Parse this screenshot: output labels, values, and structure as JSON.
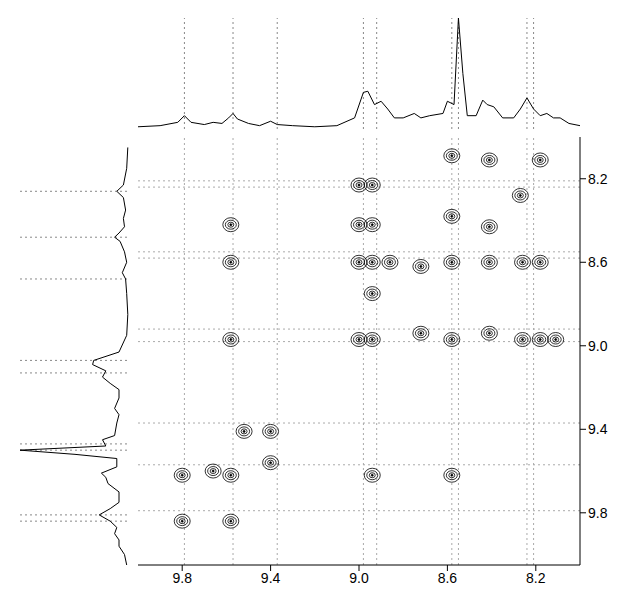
{
  "chart_data": {
    "type": "scatter",
    "marker": "contour",
    "color": "#000000",
    "xlim": [
      10.0,
      8.0
    ],
    "ylim": [
      8.0,
      10.05
    ],
    "xticks": [
      9.8,
      9.4,
      {
        "value": 9,
        "label": "9.0"
      },
      8.6,
      8.2
    ],
    "yticks": [
      8.2,
      8.6,
      {
        "value": 9,
        "label": "9.0"
      },
      9.4,
      9.8
    ],
    "guides": [
      9.79,
      9.57,
      9.37,
      8.98,
      8.92,
      8.58,
      8.55,
      8.24,
      8.21
    ],
    "x": [
      9.0,
      8.94,
      9.0,
      8.94,
      9.0,
      8.94,
      8.86,
      8.94,
      8.94,
      9.0,
      8.72,
      8.58,
      8.41,
      8.26,
      8.18,
      8.11,
      8.58,
      8.58,
      8.58,
      8.72,
      8.41,
      8.26,
      8.18,
      8.41,
      8.18,
      8.27,
      8.41,
      9.58,
      9.58,
      9.58,
      8.94,
      8.58,
      9.52,
      9.4,
      9.4,
      9.8,
      9.8,
      9.58,
      9.58,
      9.66
    ],
    "y": [
      8.23,
      8.23,
      8.42,
      8.42,
      8.6,
      8.6,
      8.6,
      8.75,
      8.97,
      8.97,
      8.94,
      8.97,
      8.94,
      8.97,
      8.97,
      8.97,
      8.09,
      8.38,
      8.6,
      8.62,
      8.6,
      8.6,
      8.6,
      8.11,
      8.11,
      8.28,
      8.43,
      8.42,
      8.6,
      8.97,
      9.62,
      9.62,
      9.41,
      9.41,
      9.56,
      9.62,
      9.84,
      9.84,
      9.62,
      9.6
    ],
    "projection": {
      "ppm": [
        10.0,
        9.9,
        9.82,
        9.79,
        9.76,
        9.7,
        9.66,
        9.62,
        9.59,
        9.57,
        9.55,
        9.5,
        9.45,
        9.4,
        9.37,
        9.3,
        9.2,
        9.1,
        9.02,
        8.98,
        8.96,
        8.93,
        8.9,
        8.87,
        8.84,
        8.8,
        8.75,
        8.72,
        8.68,
        8.62,
        8.6,
        8.57,
        8.55,
        8.53,
        8.51,
        8.47,
        8.44,
        8.42,
        8.39,
        8.35,
        8.3,
        8.27,
        8.24,
        8.21,
        8.18,
        8.15,
        8.12,
        8.09,
        8.05,
        8.0
      ],
      "intensity": [
        0.02,
        0.03,
        0.06,
        0.12,
        0.06,
        0.04,
        0.06,
        0.05,
        0.1,
        0.14,
        0.09,
        0.05,
        0.03,
        0.07,
        0.04,
        0.03,
        0.02,
        0.03,
        0.1,
        0.33,
        0.34,
        0.22,
        0.25,
        0.18,
        0.1,
        0.1,
        0.14,
        0.1,
        0.12,
        0.14,
        0.25,
        0.22,
        1.0,
        0.5,
        0.12,
        0.12,
        0.26,
        0.22,
        0.2,
        0.1,
        0.1,
        0.18,
        0.28,
        0.18,
        0.12,
        0.14,
        0.1,
        0.1,
        0.05,
        0.03
      ]
    }
  }
}
